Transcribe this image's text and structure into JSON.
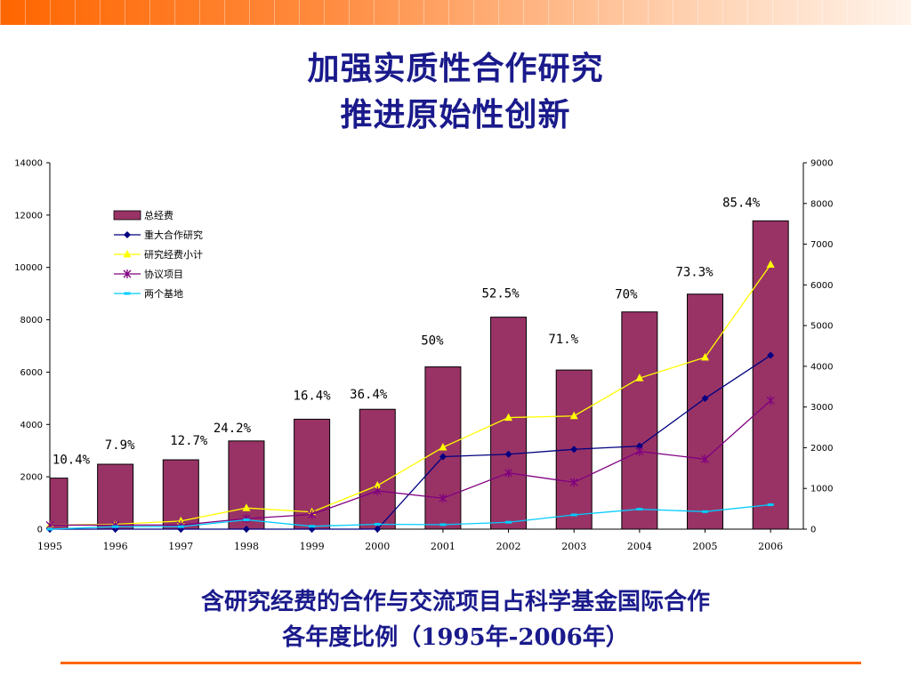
{
  "header": {
    "title_line1": "加强实质性合作研究",
    "title_line2": "推进原始性创新"
  },
  "caption": {
    "line1": "含研究经费的合作与交流项目占科学基金国际合作",
    "line2": "各年度比例（1995年-2006年）"
  },
  "colors": {
    "accent": "#ff6600",
    "title": "#1a1a8c",
    "bar": "#993366",
    "line_major": "#000080",
    "line_subtotal": "#ffff00",
    "line_agreement": "#800080",
    "line_bases": "#00ccff"
  },
  "chart_data": {
    "type": "bar",
    "title": "",
    "xlabel": "",
    "ylabel": "",
    "categories": [
      "1995",
      "1996",
      "1997",
      "1998",
      "1999",
      "2000",
      "2001",
      "2002",
      "2003",
      "2004",
      "2005",
      "2006"
    ],
    "ylim_left": [
      0,
      14000
    ],
    "yticks_left": [
      "0",
      "2000",
      "4000",
      "6000",
      "8000",
      "10000",
      "12000",
      "14000"
    ],
    "ylim_right": [
      0,
      9000
    ],
    "yticks_right": [
      "0",
      "1000",
      "2000",
      "3000",
      "4000",
      "5000",
      "6000",
      "7000",
      "8000",
      "9000"
    ],
    "grid": false,
    "legend_position": "top-left",
    "series": [
      {
        "name": "总经费",
        "kind": "bar",
        "axis": "left",
        "values": [
          1950,
          2480,
          2650,
          3370,
          4200,
          4580,
          6200,
          8100,
          6080,
          8300,
          8980,
          11780
        ]
      },
      {
        "name": "重大合作研究",
        "kind": "line",
        "axis": "right",
        "marker": "diamond",
        "values": [
          0,
          0,
          0,
          0,
          0,
          0,
          1780,
          1840,
          1960,
          2040,
          3210,
          4270
        ]
      },
      {
        "name": "研究经费小计",
        "kind": "line",
        "axis": "right",
        "marker": "triangle",
        "values": [
          100,
          120,
          200,
          520,
          420,
          1070,
          2010,
          2740,
          2780,
          3710,
          4220,
          6500
        ]
      },
      {
        "name": "协议项目",
        "kind": "line",
        "axis": "right",
        "marker": "star",
        "values": [
          100,
          100,
          100,
          260,
          360,
          940,
          760,
          1380,
          1150,
          1910,
          1720,
          3160
        ]
      },
      {
        "name": "两个基地",
        "kind": "line",
        "axis": "right",
        "marker": "dash",
        "values": [
          0,
          60,
          60,
          230,
          70,
          120,
          110,
          170,
          350,
          490,
          430,
          600
        ]
      }
    ],
    "annotations": [
      {
        "category": "1995",
        "text": "10.4%"
      },
      {
        "category": "1996",
        "text": "7.9%"
      },
      {
        "category": "1997",
        "text": "12.7%"
      },
      {
        "category": "1998",
        "text": "24.2%"
      },
      {
        "category": "1999",
        "text": "16.4%"
      },
      {
        "category": "2000",
        "text": "36.4%"
      },
      {
        "category": "2001",
        "text": "50%"
      },
      {
        "category": "2002",
        "text": "52.5%"
      },
      {
        "category": "2003",
        "text": "71.%"
      },
      {
        "category": "2004",
        "text": "70%"
      },
      {
        "category": "2005",
        "text": "73.3%"
      },
      {
        "category": "2006",
        "text": "85.4%"
      }
    ]
  }
}
